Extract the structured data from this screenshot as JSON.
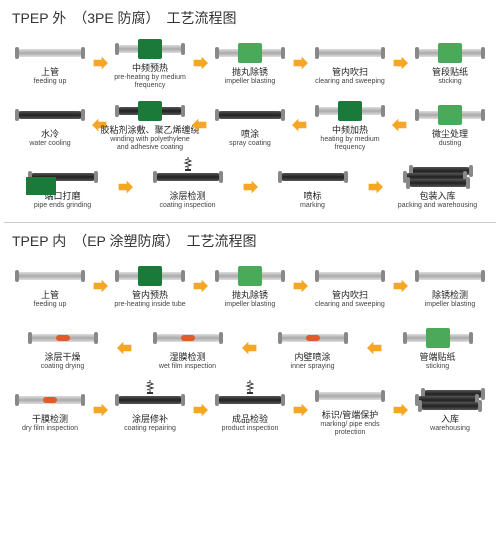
{
  "colors": {
    "arrow": "#f5a623",
    "green_dark": "#1a7a3a",
    "green_light": "#4aaa5a",
    "pipe_gray": "#aaaaaa",
    "pipe_dark": "#333333",
    "spot_orange": "#e05a2a",
    "text": "#222222"
  },
  "sections": [
    {
      "title": "TPEP 外　（3PE 防腐）　工艺流程图",
      "rows": [
        {
          "dir": "right",
          "steps": [
            {
              "cn": "上管",
              "en": "feeding up",
              "icon": "pipe"
            },
            {
              "cn": "中频预热",
              "en": "pre-heating by medium frequency",
              "icon": "pipe-box"
            },
            {
              "cn": "抛丸除锈",
              "en": "impeller blasting",
              "icon": "pipe-box-light"
            },
            {
              "cn": "管内吹扫",
              "en": "clearing and sweeping",
              "icon": "pipe"
            },
            {
              "cn": "管段贴纸",
              "en": "sticking",
              "icon": "pipe-box-light"
            }
          ]
        },
        {
          "dir": "left",
          "steps": [
            {
              "cn": "水冷",
              "en": "water cooling",
              "icon": "pipe-dark"
            },
            {
              "cn": "胶粘剂涂敷、聚乙烯缠绕",
              "en": "winding with polyethylene and adhesive coating",
              "icon": "pipe-dark-box"
            },
            {
              "cn": "喷涂",
              "en": "spray coating",
              "icon": "pipe-dark"
            },
            {
              "cn": "中频加热",
              "en": "heating by medium frequency",
              "icon": "pipe-box"
            },
            {
              "cn": "微尘处理",
              "en": "dusting",
              "icon": "pipe-box-light"
            }
          ]
        },
        {
          "dir": "right",
          "steps": [
            {
              "cn": "端口打磨",
              "en": "pipe ends grinding",
              "icon": "pipe-base"
            },
            {
              "cn": "涂层检测",
              "en": "coating inspection",
              "icon": "pipe-spring"
            },
            {
              "cn": "喷标",
              "en": "marking",
              "icon": "pipe-dark"
            },
            {
              "cn": "包装入库",
              "en": "packing and warehousing",
              "icon": "stack"
            }
          ]
        }
      ]
    },
    {
      "title": "TPEP 内　（EP 涂塑防腐）　工艺流程图",
      "rows": [
        {
          "dir": "right",
          "steps": [
            {
              "cn": "上管",
              "en": "feeding up",
              "icon": "pipe"
            },
            {
              "cn": "管内预热",
              "en": "pre-heating inside tube",
              "icon": "pipe-box"
            },
            {
              "cn": "抛丸除锈",
              "en": "impeller blasting",
              "icon": "pipe-box-light"
            },
            {
              "cn": "管内吹扫",
              "en": "clearing and sweeping",
              "icon": "pipe"
            },
            {
              "cn": "除锈检测",
              "en": "impeller blasting",
              "icon": "pipe"
            }
          ]
        },
        {
          "dir": "left",
          "steps": [
            {
              "cn": "涂层干燥",
              "en": "coating drying",
              "icon": "pipe-spot"
            },
            {
              "cn": "湿膜检测",
              "en": "wet film inspection",
              "icon": "pipe-spot"
            },
            {
              "cn": "内壁喷涂",
              "en": "inner spraying",
              "icon": "pipe-spot"
            },
            {
              "cn": "管端贴纸",
              "en": "sticking",
              "icon": "pipe-box-light"
            }
          ]
        },
        {
          "dir": "right",
          "steps": [
            {
              "cn": "干膜检测",
              "en": "dry film inspection",
              "icon": "pipe-spot"
            },
            {
              "cn": "涂层修补",
              "en": "coating repairing",
              "icon": "pipe-spring"
            },
            {
              "cn": "成品检验",
              "en": "product inspection",
              "icon": "pipe-spring"
            },
            {
              "cn": "标识/管端保护",
              "en": "marking/ pipe ends protection",
              "icon": "pipe"
            },
            {
              "cn": "入库",
              "en": "warehousing",
              "icon": "stack"
            }
          ]
        }
      ]
    }
  ]
}
